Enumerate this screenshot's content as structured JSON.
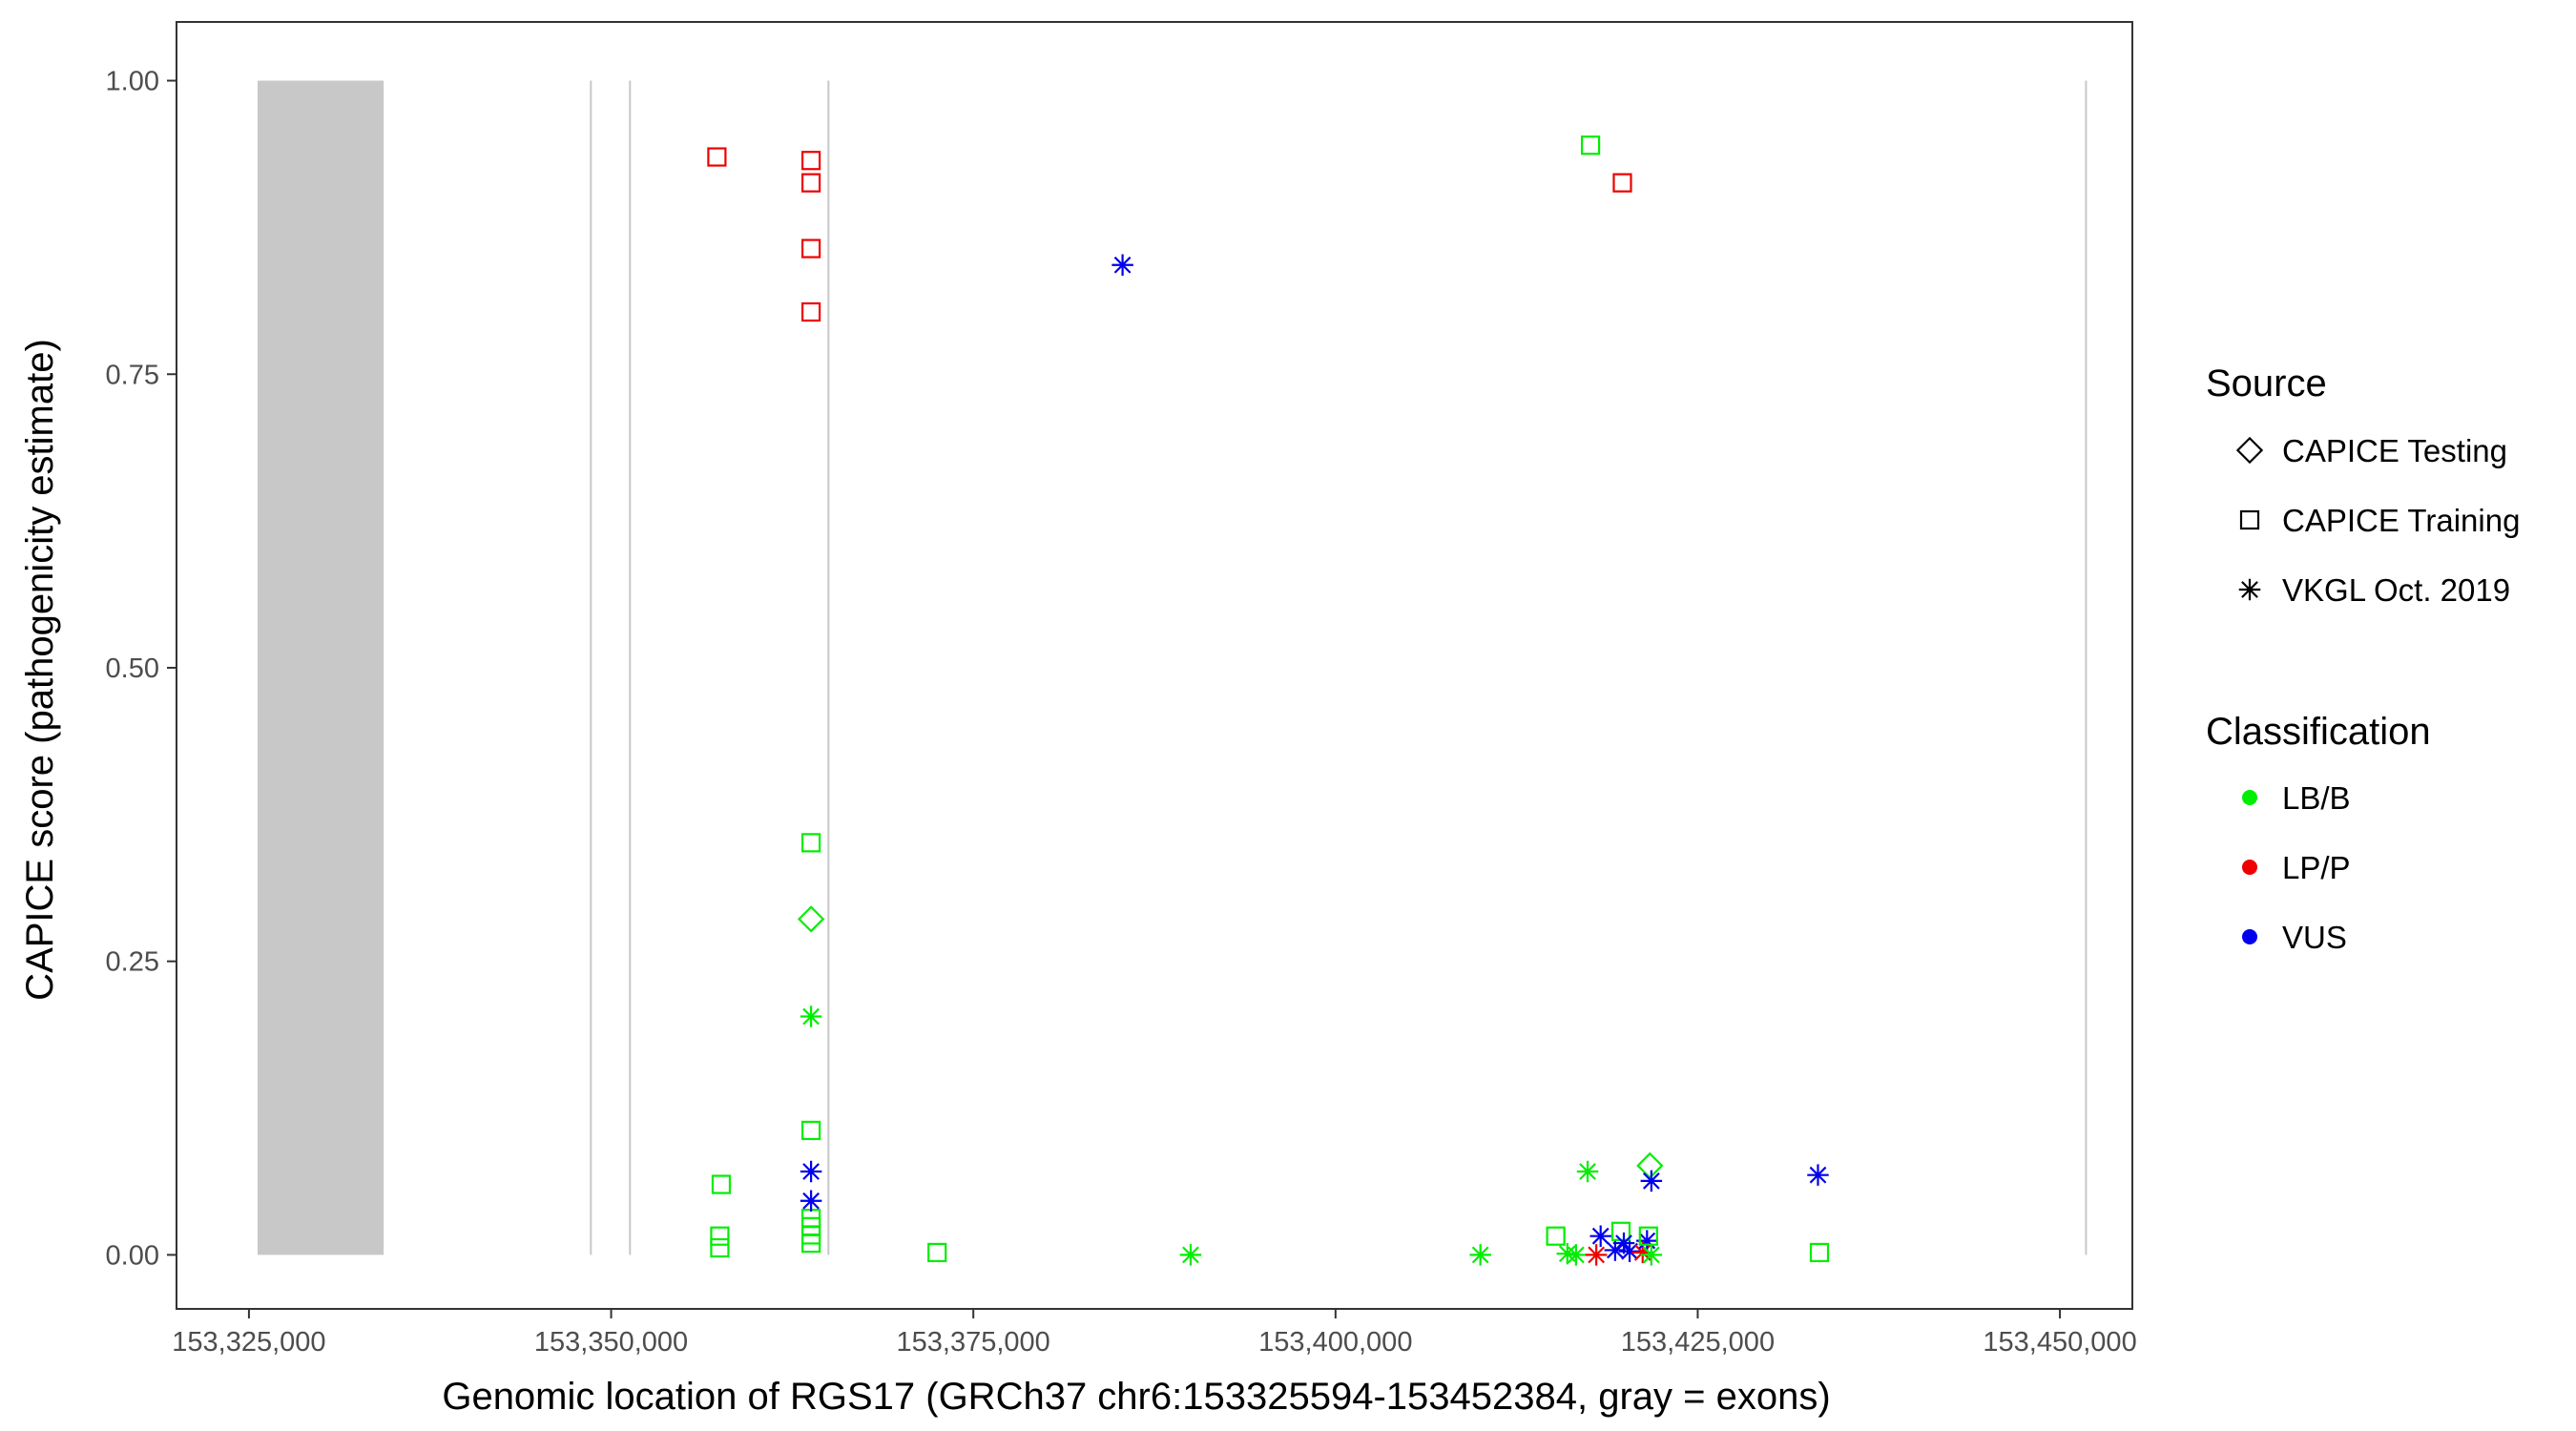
{
  "chart_data": {
    "type": "scatter",
    "xlabel": "Genomic location of RGS17 (GRCh37 chr6:153325594-153452384, gray = exons)",
    "ylabel": "CAPICE score (pathogenicity estimate)",
    "xlim": [
      153320000,
      153455000
    ],
    "ylim": [
      -0.046,
      1.05
    ],
    "x_ticks": [
      153325000,
      153350000,
      153375000,
      153400000,
      153425000,
      153450000
    ],
    "x_tick_labels": [
      "153,325,000",
      "153,350,000",
      "153,375,000",
      "153,400,000",
      "153,425,000",
      "153,450,000"
    ],
    "y_ticks": [
      0,
      0.25,
      0.5,
      0.75,
      1.0
    ],
    "y_tick_labels": [
      "0.00",
      "0.25",
      "0.50",
      "0.75",
      "1.00"
    ],
    "grid": false,
    "exon_band": {
      "x_start": 153325594,
      "x_end": 153334300,
      "color": "#c8c8c8"
    },
    "exon_lines": [
      153348600,
      153351300,
      153365000,
      153451800
    ],
    "legend": {
      "placement": "right",
      "source_title": "Source",
      "source_items": [
        {
          "label": "CAPICE Testing",
          "shape": "diamond"
        },
        {
          "label": "CAPICE Training",
          "shape": "square"
        },
        {
          "label": "VKGL Oct. 2019",
          "shape": "asterisk"
        }
      ],
      "class_title": "Classification",
      "class_items": [
        {
          "label": "LB/B",
          "color": "#00ee00"
        },
        {
          "label": "LP/P",
          "color": "#ee0000"
        },
        {
          "label": "VUS",
          "color": "#0000ee"
        }
      ]
    },
    "colors": {
      "LB/B": "#00ee00",
      "LP/P": "#ee0000",
      "VUS": "#0000ee"
    },
    "points": [
      {
        "x": 153357300,
        "y": 0.935,
        "shape": "square",
        "cls": "LP/P"
      },
      {
        "x": 153363800,
        "y": 0.932,
        "shape": "square",
        "cls": "LP/P"
      },
      {
        "x": 153363800,
        "y": 0.913,
        "shape": "square",
        "cls": "LP/P"
      },
      {
        "x": 153363800,
        "y": 0.857,
        "shape": "square",
        "cls": "LP/P"
      },
      {
        "x": 153363800,
        "y": 0.803,
        "shape": "square",
        "cls": "LP/P"
      },
      {
        "x": 153419800,
        "y": 0.913,
        "shape": "square",
        "cls": "LP/P"
      },
      {
        "x": 153417600,
        "y": 0.945,
        "shape": "square",
        "cls": "LB/B"
      },
      {
        "x": 153363800,
        "y": 0.351,
        "shape": "square",
        "cls": "LB/B"
      },
      {
        "x": 153363800,
        "y": 0.286,
        "shape": "diamond",
        "cls": "LB/B"
      },
      {
        "x": 153363800,
        "y": 0.203,
        "shape": "asterisk",
        "cls": "LB/B"
      },
      {
        "x": 153363800,
        "y": 0.106,
        "shape": "square",
        "cls": "LB/B"
      },
      {
        "x": 153357600,
        "y": 0.06,
        "shape": "square",
        "cls": "LB/B"
      },
      {
        "x": 153357500,
        "y": 0.016,
        "shape": "square",
        "cls": "LB/B"
      },
      {
        "x": 153357500,
        "y": 0.006,
        "shape": "square",
        "cls": "LB/B"
      },
      {
        "x": 153363800,
        "y": 0.031,
        "shape": "square",
        "cls": "LB/B"
      },
      {
        "x": 153363800,
        "y": 0.024,
        "shape": "square",
        "cls": "LB/B"
      },
      {
        "x": 153363800,
        "y": 0.017,
        "shape": "square",
        "cls": "LB/B"
      },
      {
        "x": 153363800,
        "y": 0.01,
        "shape": "square",
        "cls": "LB/B"
      },
      {
        "x": 153363800,
        "y": 0.071,
        "shape": "asterisk",
        "cls": "VUS"
      },
      {
        "x": 153363800,
        "y": 0.046,
        "shape": "asterisk",
        "cls": "VUS"
      },
      {
        "x": 153372500,
        "y": 0.002,
        "shape": "square",
        "cls": "LB/B"
      },
      {
        "x": 153385300,
        "y": 0.843,
        "shape": "asterisk",
        "cls": "VUS"
      },
      {
        "x": 153390000,
        "y": 0.0,
        "shape": "asterisk",
        "cls": "LB/B"
      },
      {
        "x": 153410000,
        "y": 0.0,
        "shape": "asterisk",
        "cls": "LB/B"
      },
      {
        "x": 153415200,
        "y": 0.016,
        "shape": "square",
        "cls": "LB/B"
      },
      {
        "x": 153416000,
        "y": 0.001,
        "shape": "asterisk",
        "cls": "LB/B"
      },
      {
        "x": 153416600,
        "y": 0.0,
        "shape": "asterisk",
        "cls": "LB/B"
      },
      {
        "x": 153417400,
        "y": 0.071,
        "shape": "asterisk",
        "cls": "LB/B"
      },
      {
        "x": 153418000,
        "y": 0.0,
        "shape": "asterisk",
        "cls": "LP/P"
      },
      {
        "x": 153418300,
        "y": 0.016,
        "shape": "asterisk",
        "cls": "VUS"
      },
      {
        "x": 153419300,
        "y": 0.004,
        "shape": "asterisk",
        "cls": "VUS"
      },
      {
        "x": 153419700,
        "y": 0.02,
        "shape": "square",
        "cls": "LB/B"
      },
      {
        "x": 153419900,
        "y": 0.01,
        "shape": "asterisk",
        "cls": "VUS"
      },
      {
        "x": 153420300,
        "y": 0.003,
        "shape": "asterisk",
        "cls": "VUS"
      },
      {
        "x": 153421200,
        "y": 0.002,
        "shape": "asterisk",
        "cls": "LP/P"
      },
      {
        "x": 153421500,
        "y": 0.012,
        "shape": "asterisk",
        "cls": "VUS"
      },
      {
        "x": 153421600,
        "y": 0.016,
        "shape": "square",
        "cls": "LB/B"
      },
      {
        "x": 153421700,
        "y": 0.076,
        "shape": "diamond",
        "cls": "LB/B"
      },
      {
        "x": 153421800,
        "y": 0.063,
        "shape": "asterisk",
        "cls": "VUS"
      },
      {
        "x": 153421800,
        "y": 0.0,
        "shape": "asterisk",
        "cls": "LB/B"
      },
      {
        "x": 153433400,
        "y": 0.002,
        "shape": "square",
        "cls": "LB/B"
      },
      {
        "x": 153433300,
        "y": 0.068,
        "shape": "asterisk",
        "cls": "VUS"
      }
    ]
  }
}
